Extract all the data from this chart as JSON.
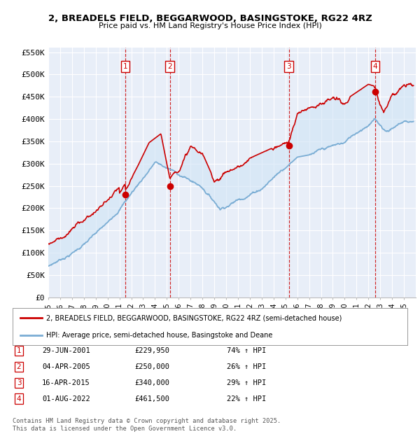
{
  "title": "2, BREADELS FIELD, BEGGARWOOD, BASINGSTOKE, RG22 4RZ",
  "subtitle": "Price paid vs. HM Land Registry's House Price Index (HPI)",
  "ylim": [
    0,
    560000
  ],
  "yticks": [
    0,
    50000,
    100000,
    150000,
    200000,
    250000,
    300000,
    350000,
    400000,
    450000,
    500000,
    550000
  ],
  "ytick_labels": [
    "£0",
    "£50K",
    "£100K",
    "£150K",
    "£200K",
    "£250K",
    "£300K",
    "£350K",
    "£400K",
    "£450K",
    "£500K",
    "£550K"
  ],
  "line_color_red": "#cc0000",
  "line_color_blue": "#7aadd4",
  "fill_color_blue": "#d0e4f5",
  "plot_bg": "#e8eef8",
  "fig_bg": "#ffffff",
  "grid_color": "#ffffff",
  "sale_years": [
    2001.49,
    2005.25,
    2015.29,
    2022.58
  ],
  "sale_prices": [
    229950,
    250000,
    340000,
    461500
  ],
  "sale_labels": [
    "1",
    "2",
    "3",
    "4"
  ],
  "legend_line1": "2, BREADELS FIELD, BEGGARWOOD, BASINGSTOKE, RG22 4RZ (semi-detached house)",
  "legend_line2": "HPI: Average price, semi-detached house, Basingstoke and Deane",
  "table_data": [
    [
      "1",
      "29-JUN-2001",
      "£229,950",
      "74% ↑ HPI"
    ],
    [
      "2",
      "04-APR-2005",
      "£250,000",
      "26% ↑ HPI"
    ],
    [
      "3",
      "16-APR-2015",
      "£340,000",
      "29% ↑ HPI"
    ],
    [
      "4",
      "01-AUG-2022",
      "£461,500",
      "22% ↑ HPI"
    ]
  ],
  "footer": "Contains HM Land Registry data © Crown copyright and database right 2025.\nThis data is licensed under the Open Government Licence v3.0.",
  "xmin": 1995,
  "xmax": 2026
}
